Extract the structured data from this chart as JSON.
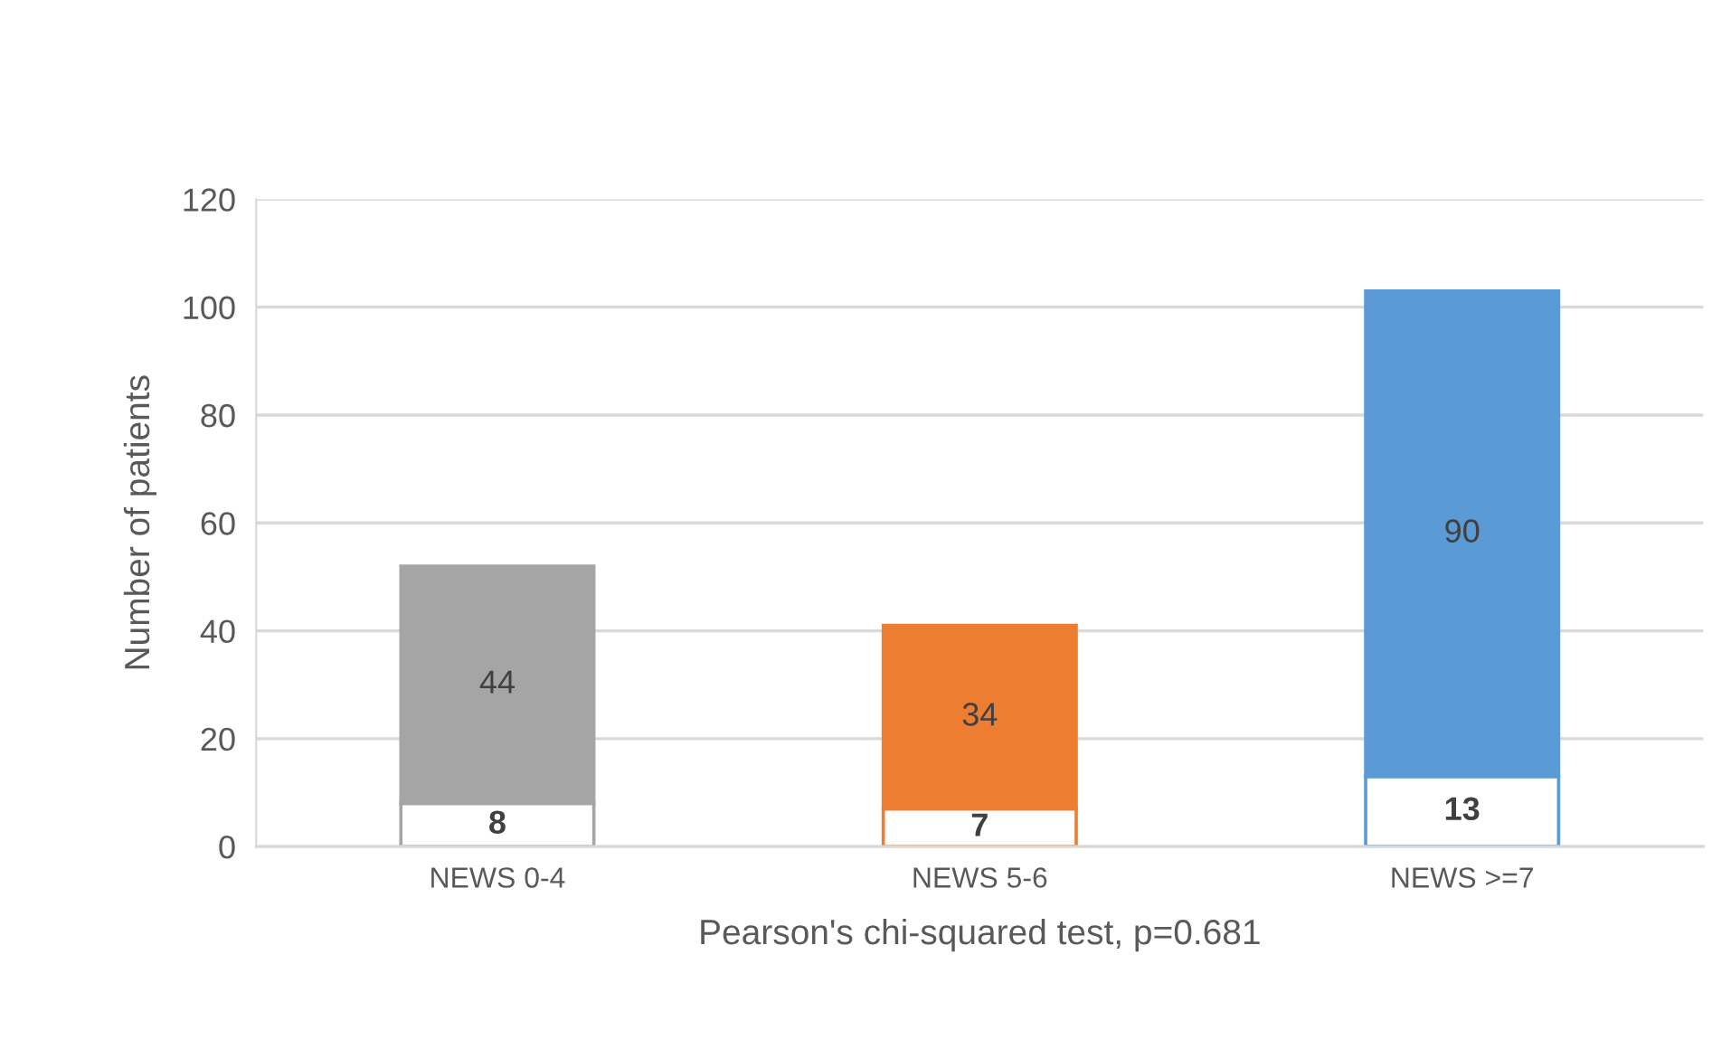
{
  "chart_data": {
    "type": "bar",
    "stacked": true,
    "xlabel": "Pearson's chi-squared test, p=0.681",
    "ylabel": "Number of patients",
    "categories": [
      "NEWS 0-4",
      "NEWS 5-6",
      "NEWS >=7"
    ],
    "series": [
      {
        "colors": [
          "#ffffff",
          "#ffffff",
          "#ffffff"
        ],
        "values": [
          8,
          7,
          13
        ]
      },
      {
        "colors": [
          "#a5a5a5",
          "#ed7d31",
          "#5b9bd5"
        ],
        "values": [
          44,
          34,
          90
        ]
      }
    ],
    "ylim": [
      0,
      120
    ],
    "yticks": [
      0,
      20,
      40,
      60,
      80,
      100,
      120
    ],
    "grid": "y",
    "data_labels": true
  }
}
